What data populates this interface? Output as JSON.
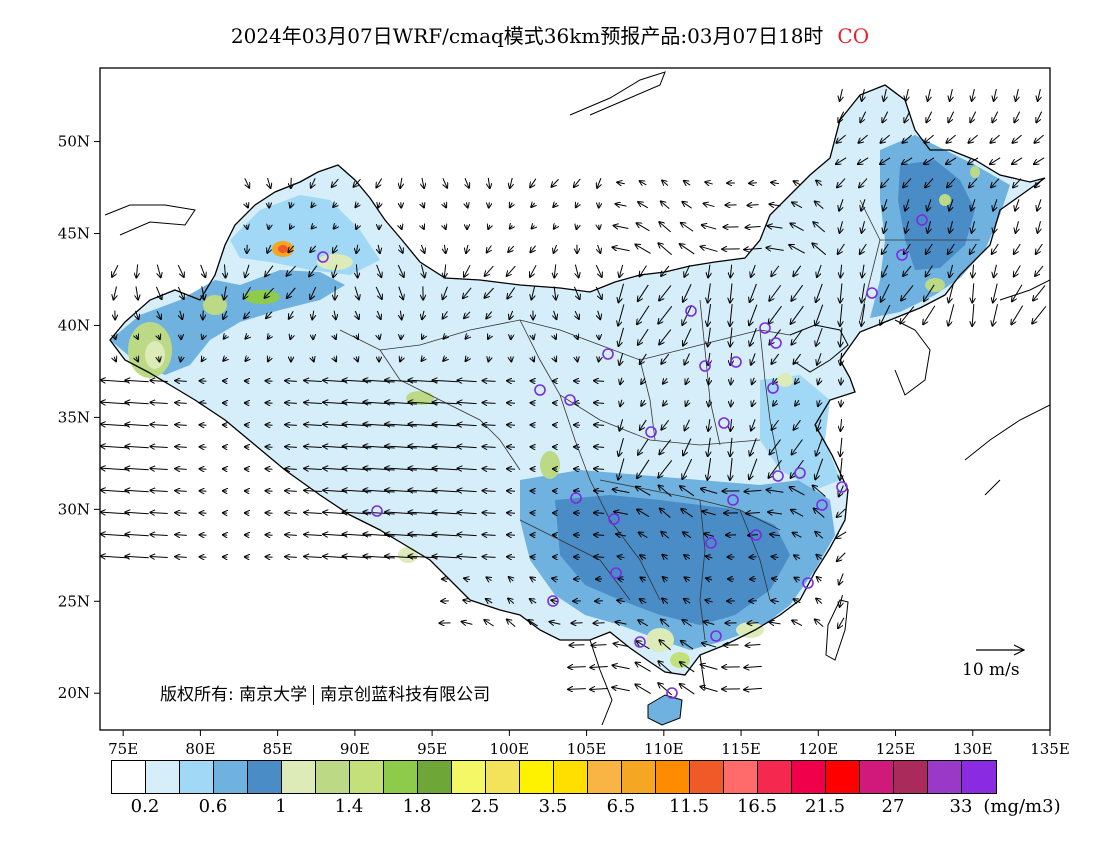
{
  "header": {
    "title": "2024年03月07日WRF/cmaq模式36km预报产品:03月07日18时",
    "species": "CO",
    "species_color": "#e8202a"
  },
  "map": {
    "lon_ticks": [
      "75E",
      "80E",
      "85E",
      "90E",
      "95E",
      "100E",
      "105E",
      "110E",
      "115E",
      "120E",
      "125E",
      "130E",
      "135E"
    ],
    "lat_ticks": [
      "20N",
      "25N",
      "30N",
      "35N",
      "40N",
      "45N",
      "50N"
    ],
    "lon_range": [
      73.5,
      135
    ],
    "lat_range": [
      18,
      54
    ]
  },
  "copyright": {
    "part1": "版权所有: 南京大学",
    "part2": "南京创蓝科技有限公司"
  },
  "wind_scale": {
    "label": "10 m/s"
  },
  "legend": {
    "colors": [
      "#ffffff",
      "#d6eefa",
      "#a0d8f5",
      "#6fb2e0",
      "#4a8cc6",
      "#dcebb8",
      "#bcd985",
      "#c4e07a",
      "#8ecb4a",
      "#6fa638",
      "#f4f766",
      "#f2e35a",
      "#fff200",
      "#ffdf00",
      "#f9b544",
      "#f5a623",
      "#ff8c00",
      "#f05a28",
      "#ff6b6b",
      "#f5284f",
      "#f0004a",
      "#ff0000",
      "#d0197a",
      "#aa2b5b",
      "#9a38c8",
      "#8a2be2"
    ],
    "labels": [
      "0.2",
      "0.6",
      "1",
      "1.4",
      "1.8",
      "2.5",
      "3.5",
      "6.5",
      "11.5",
      "16.5",
      "21.5",
      "27",
      "33"
    ],
    "unit": "(mg/m3)"
  }
}
